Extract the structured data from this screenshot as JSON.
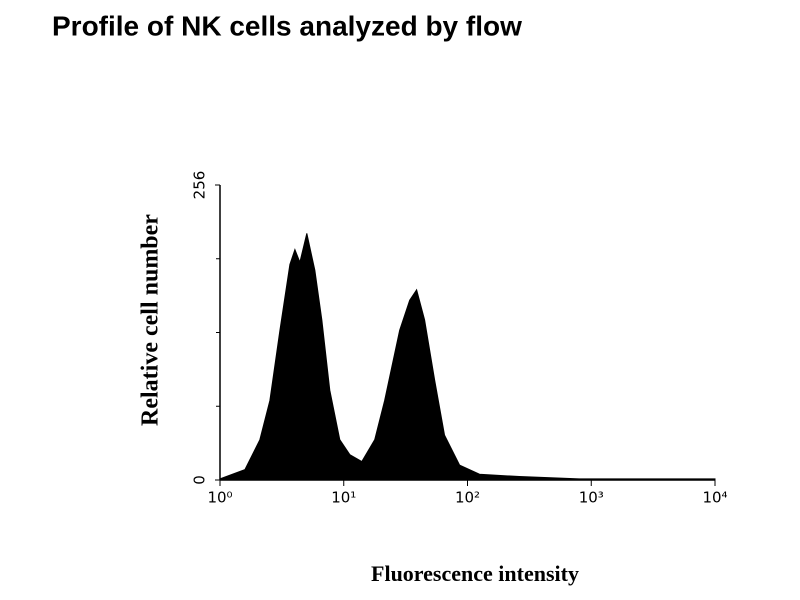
{
  "chart_data": {
    "type": "area",
    "title": "Profile of NK cells analyzed by flow",
    "x_label": "Fluorescence intensity",
    "y_label": "Relative cell number",
    "x": [
      1.0,
      1.59,
      2.1,
      2.53,
      3.05,
      3.67,
      4.03,
      4.42,
      5.03,
      5.84,
      6.65,
      7.71,
      9.29,
      11.2,
      14.0,
      17.8,
      21.4,
      28.3,
      34.1,
      38.8,
      45.0,
      54.2,
      65.2,
      86.2,
      125,
      263,
      800,
      10000
    ],
    "values": [
      1,
      9,
      35,
      69,
      130,
      187,
      200,
      189,
      214,
      182,
      139,
      78,
      35,
      22,
      16,
      35,
      69,
      130,
      156,
      165,
      139,
      87,
      39,
      13,
      5,
      3,
      1,
      1
    ],
    "color": "#000000",
    "log_x": true,
    "xlim": [
      1,
      10000
    ],
    "xticks": [
      {
        "value": 1,
        "label": "10⁰"
      },
      {
        "value": 10,
        "label": "10¹"
      },
      {
        "value": 100,
        "label": "10²"
      },
      {
        "value": 1000,
        "label": "10³"
      },
      {
        "value": 10000,
        "label": "10⁴"
      }
    ],
    "ylim": [
      0,
      256
    ],
    "yticks": [
      0,
      256
    ],
    "minor_yticks": [
      64,
      128,
      192
    ]
  }
}
